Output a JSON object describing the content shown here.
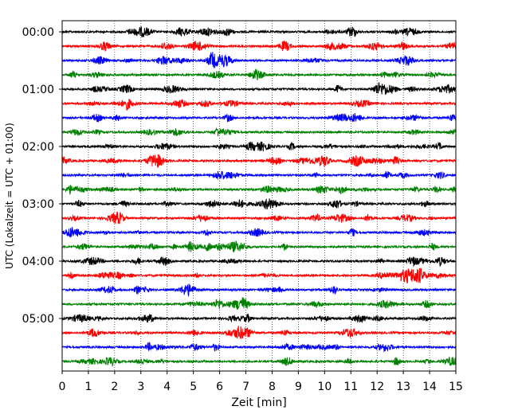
{
  "chart_data": {
    "type": "line",
    "xlabel": "Zeit  [min]",
    "ylabel": "UTC (Lokalzeit = UTC + 01:00)",
    "xlim": [
      0,
      15
    ],
    "xticks": [
      0,
      1,
      2,
      3,
      4,
      5,
      6,
      7,
      8,
      9,
      10,
      11,
      12,
      13,
      14,
      15
    ],
    "ytick_labels": [
      "00:00",
      "01:00",
      "02:00",
      "03:00",
      "04:00",
      "05:00"
    ],
    "trace_interval_min": 15,
    "trace_count": 24,
    "trace_start_times": [
      "00:00",
      "00:15",
      "00:30",
      "00:45",
      "01:00",
      "01:15",
      "01:30",
      "01:45",
      "02:00",
      "02:15",
      "02:30",
      "02:45",
      "03:00",
      "03:15",
      "03:30",
      "03:45",
      "04:00",
      "04:15",
      "04:30",
      "04:45",
      "05:00",
      "05:15",
      "05:30",
      "05:45"
    ],
    "trace_colors": [
      "#000000",
      "#ff0000",
      "#0000ff",
      "#008000"
    ],
    "vertical_grid": "dotted",
    "legend": "none"
  }
}
